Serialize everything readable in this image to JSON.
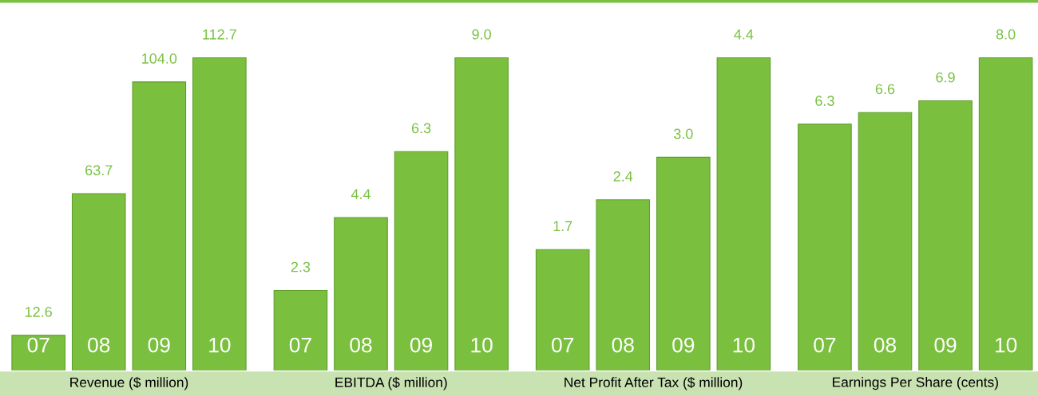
{
  "chart_data": [
    {
      "type": "bar",
      "xlabel": "Revenue ($ million)",
      "categories": [
        "07",
        "08",
        "09",
        "10"
      ],
      "values": [
        12.6,
        63.7,
        104.0,
        112.7
      ],
      "value_labels": [
        "12.6",
        "63.7",
        "104.0",
        "112.7"
      ],
      "color": "#7bbf3f",
      "tick_labels": "x"
    },
    {
      "type": "bar",
      "xlabel": "EBITDA ($ million)",
      "categories": [
        "07",
        "08",
        "09",
        "10"
      ],
      "values": [
        2.3,
        4.4,
        6.3,
        9.0
      ],
      "value_labels": [
        "2.3",
        "4.4",
        "6.3",
        "9.0"
      ],
      "color": "#7bbf3f",
      "tick_labels": "x"
    },
    {
      "type": "bar",
      "xlabel": "Net Profit After Tax ($ million)",
      "categories": [
        "07",
        "08",
        "09",
        "10"
      ],
      "values": [
        1.7,
        2.4,
        3.0,
        4.4
      ],
      "value_labels": [
        "1.7",
        "2.4",
        "3.0",
        "4.4"
      ],
      "color": "#7bbf3f",
      "tick_labels": "x"
    },
    {
      "type": "bar",
      "xlabel": "Earnings Per Share (cents)",
      "categories": [
        "07",
        "08",
        "09",
        "10"
      ],
      "values": [
        6.3,
        6.6,
        6.9,
        8.0
      ],
      "value_labels": [
        "6.3",
        "6.6",
        "6.9",
        "8.0"
      ],
      "color": "#7bbf3f",
      "tick_labels": "x"
    }
  ]
}
